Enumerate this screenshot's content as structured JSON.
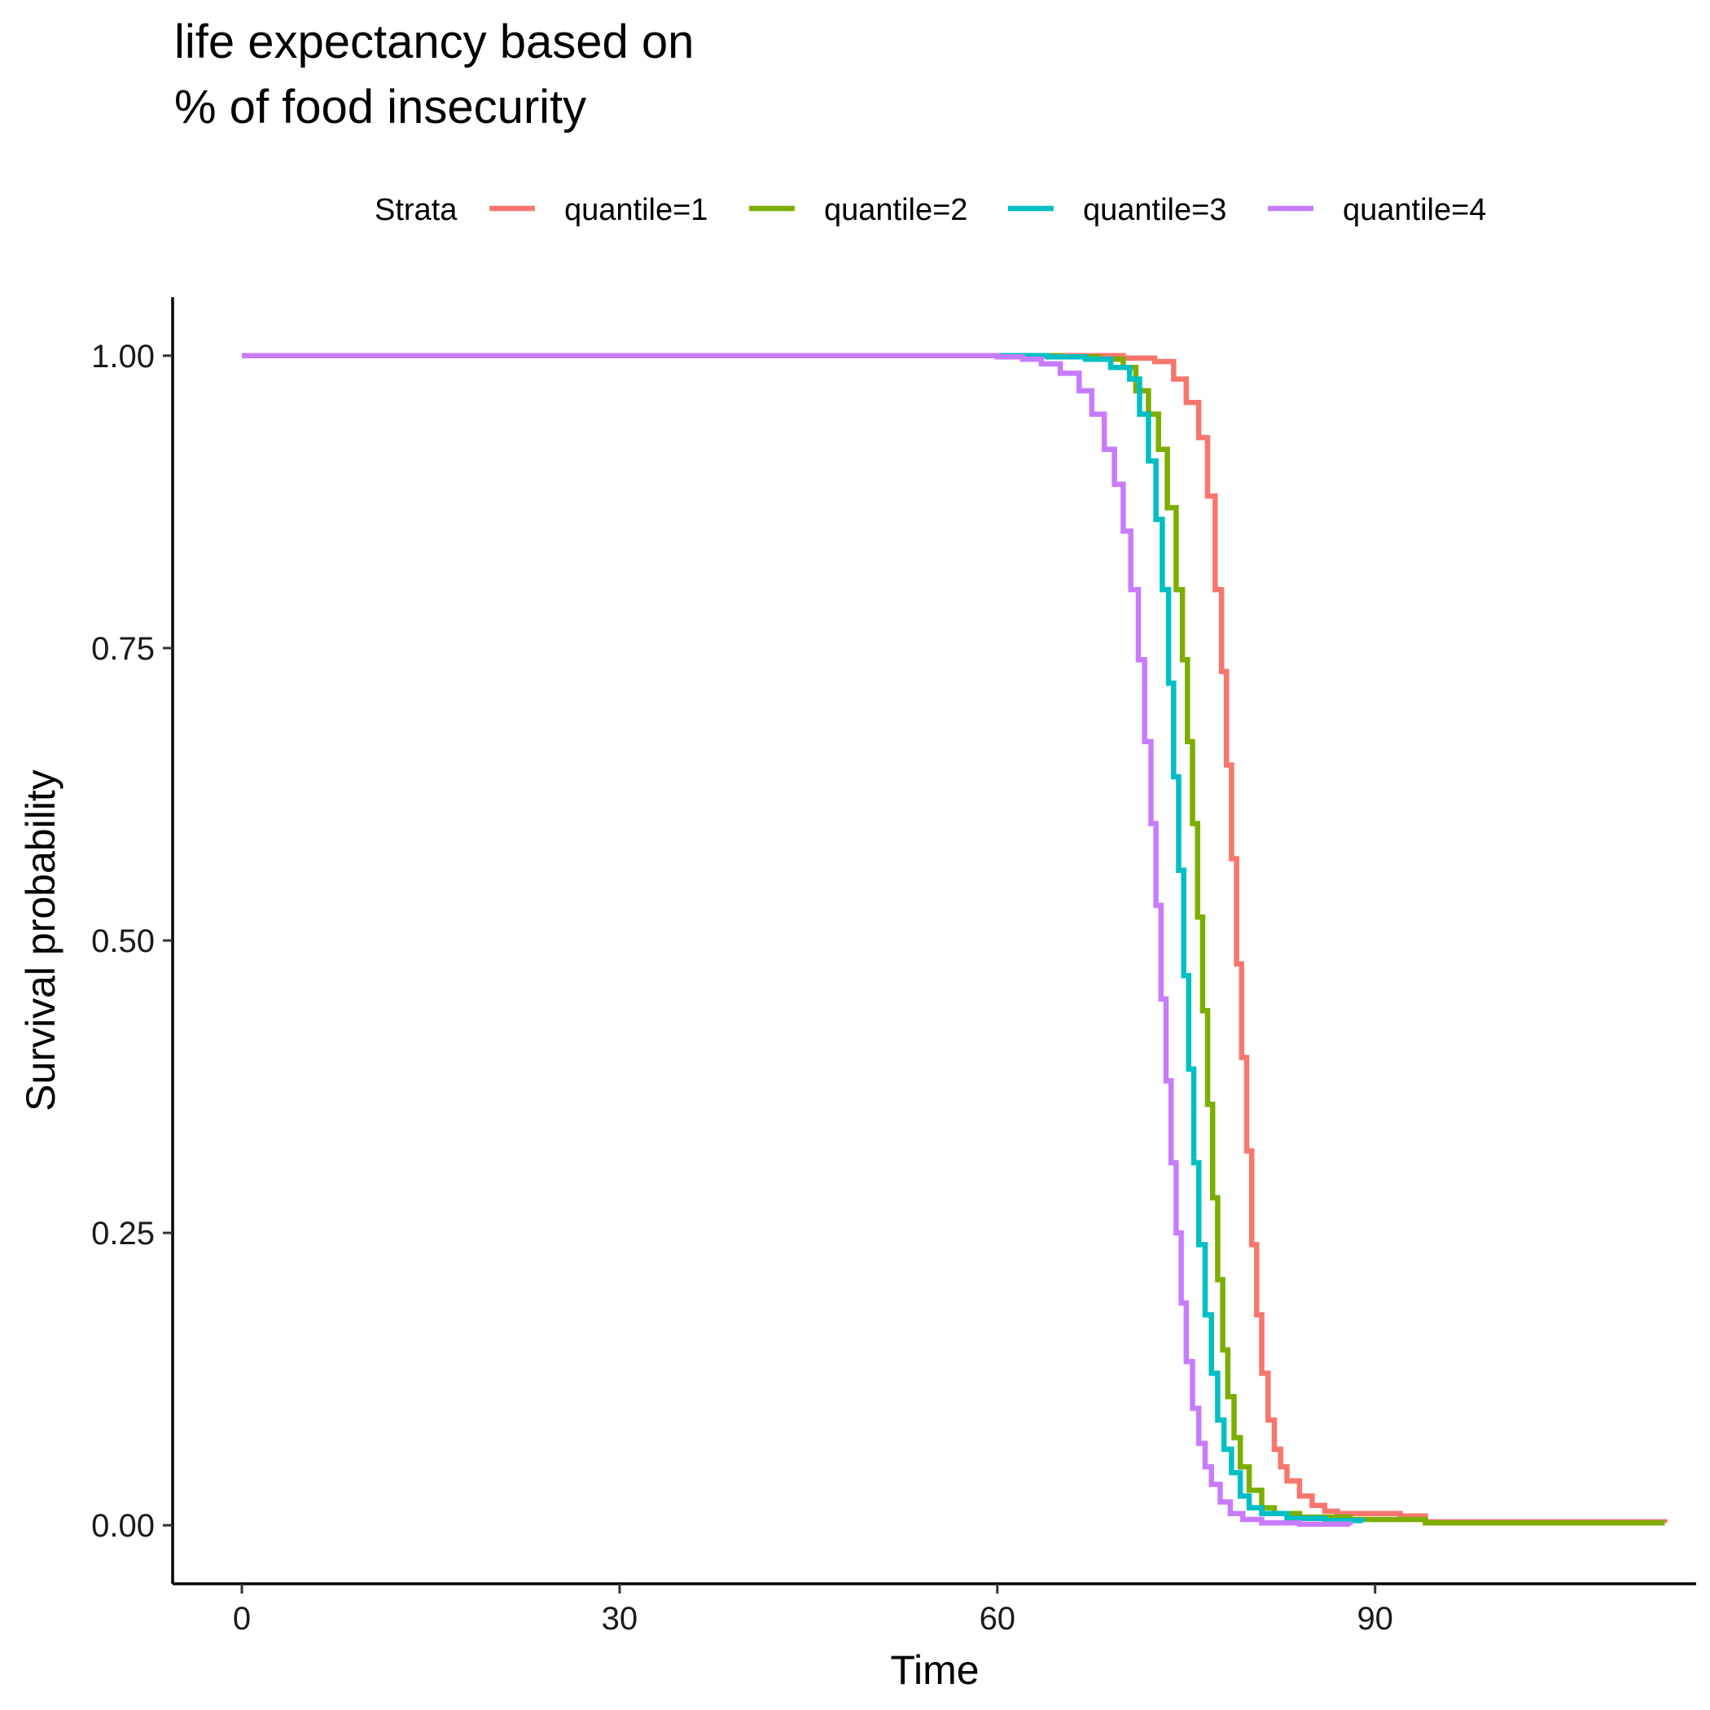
{
  "chart_data": {
    "type": "line",
    "title_lines": [
      "life expectancy based on",
      "% of food insecurity"
    ],
    "xlabel": "Time",
    "ylabel": "Survival probability",
    "xlim": [
      -5.5,
      115.5
    ],
    "ylim": [
      -0.05,
      1.05
    ],
    "x_ticks": [
      0,
      30,
      60,
      90
    ],
    "x_tick_labels": [
      "0",
      "30",
      "60",
      "90"
    ],
    "y_ticks": [
      0,
      0.25,
      0.5,
      0.75,
      1
    ],
    "y_tick_labels": [
      "0.00",
      "0.25",
      "0.50",
      "0.75",
      "1.00"
    ],
    "grid": false,
    "legend": {
      "title": "Strata",
      "position": "top"
    },
    "series": [
      {
        "name": "quantile=1",
        "color": "#F8766D",
        "x": [
          0,
          60,
          65,
          70,
          72.5,
          74,
          75,
          76,
          76.7,
          77.3,
          77.8,
          78.2,
          78.6,
          79,
          79.4,
          79.8,
          80.2,
          80.6,
          81,
          81.5,
          82,
          82.5,
          83,
          84,
          85,
          86,
          87,
          92,
          94,
          113
        ],
        "y": [
          1.0,
          1.0,
          1.0,
          0.998,
          0.995,
          0.98,
          0.96,
          0.93,
          0.88,
          0.8,
          0.73,
          0.65,
          0.57,
          0.48,
          0.4,
          0.32,
          0.24,
          0.18,
          0.13,
          0.09,
          0.065,
          0.05,
          0.038,
          0.025,
          0.017,
          0.012,
          0.01,
          0.008,
          0.003,
          0.002
        ]
      },
      {
        "name": "quantile=2",
        "color": "#7CAE00",
        "x": [
          0,
          58,
          65,
          68,
          70,
          71,
          72,
          72.8,
          73.5,
          74.2,
          74.7,
          75.1,
          75.5,
          75.9,
          76.3,
          76.7,
          77.1,
          77.5,
          77.9,
          78.3,
          78.8,
          79.3,
          80,
          81,
          82,
          84,
          88,
          94,
          113
        ],
        "y": [
          1.0,
          1.0,
          0.999,
          0.997,
          0.99,
          0.97,
          0.95,
          0.92,
          0.87,
          0.8,
          0.74,
          0.67,
          0.6,
          0.52,
          0.44,
          0.36,
          0.28,
          0.21,
          0.15,
          0.11,
          0.075,
          0.05,
          0.03,
          0.015,
          0.01,
          0.007,
          0.005,
          0.002,
          0.002
        ]
      },
      {
        "name": "quantile=3",
        "color": "#00BFC4",
        "x": [
          0,
          60,
          64,
          67,
          69,
          70.5,
          71.3,
          72,
          72.6,
          73.1,
          73.6,
          74,
          74.4,
          74.8,
          75.2,
          75.6,
          76,
          76.5,
          77,
          77.5,
          78,
          78.6,
          79.3,
          80,
          81,
          83,
          86,
          89
        ],
        "y": [
          1.0,
          1.0,
          0.999,
          0.997,
          0.99,
          0.98,
          0.95,
          0.91,
          0.86,
          0.8,
          0.72,
          0.64,
          0.56,
          0.47,
          0.39,
          0.31,
          0.24,
          0.18,
          0.13,
          0.09,
          0.065,
          0.045,
          0.025,
          0.015,
          0.01,
          0.006,
          0.004,
          0.003
        ]
      },
      {
        "name": "quantile=4",
        "color": "#C77CFF",
        "x": [
          0,
          55,
          60,
          62,
          63.5,
          65,
          66.5,
          67.5,
          68.5,
          69.3,
          70,
          70.6,
          71.2,
          71.7,
          72.2,
          72.6,
          73,
          73.4,
          73.8,
          74.2,
          74.6,
          75,
          75.5,
          76,
          76.5,
          77,
          77.7,
          78.5,
          79.5,
          81,
          84,
          88
        ],
        "y": [
          1.0,
          1.0,
          0.999,
          0.997,
          0.993,
          0.985,
          0.97,
          0.95,
          0.92,
          0.89,
          0.85,
          0.8,
          0.74,
          0.67,
          0.6,
          0.53,
          0.45,
          0.38,
          0.31,
          0.25,
          0.19,
          0.14,
          0.1,
          0.07,
          0.05,
          0.035,
          0.02,
          0.01,
          0.005,
          0.002,
          0.001,
          0.0
        ]
      }
    ]
  }
}
